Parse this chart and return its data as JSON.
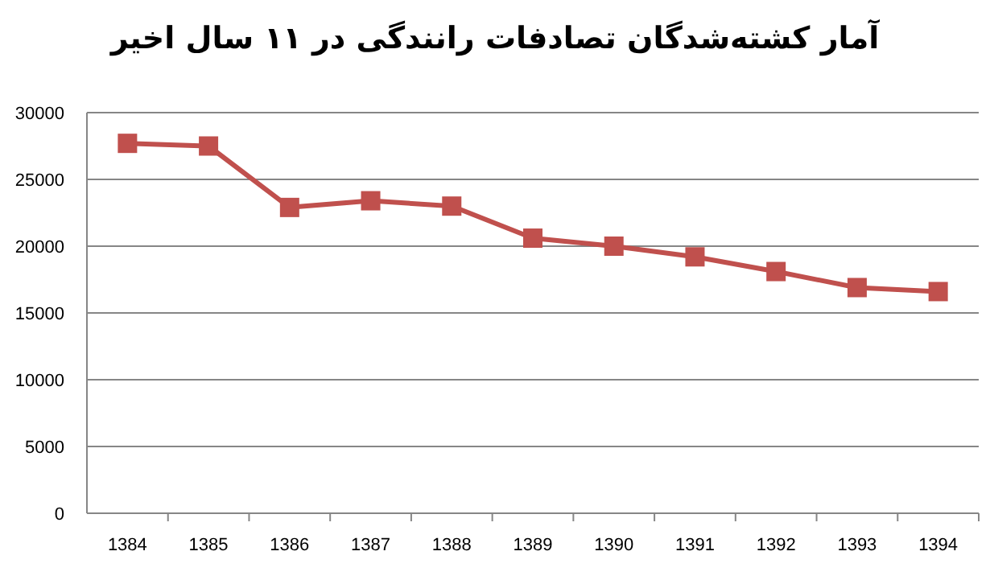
{
  "chart_data": {
    "type": "line",
    "title": "آمار کشته‌شدگان تصادفات رانندگی در ۱۱ سال اخیر",
    "categories": [
      "1384",
      "1385",
      "1386",
      "1387",
      "1388",
      "1389",
      "1390",
      "1391",
      "1392",
      "1393",
      "1394"
    ],
    "series": [
      {
        "color": "#c0504d",
        "values": [
          27700,
          27500,
          22900,
          23400,
          23000,
          20600,
          20000,
          19200,
          18100,
          16900,
          16600
        ]
      }
    ],
    "ylim": [
      0,
      30000
    ],
    "yticks": [
      0,
      5000,
      10000,
      15000,
      20000,
      25000,
      30000
    ],
    "grid": "y",
    "marker": "square",
    "line_style": "solid"
  }
}
